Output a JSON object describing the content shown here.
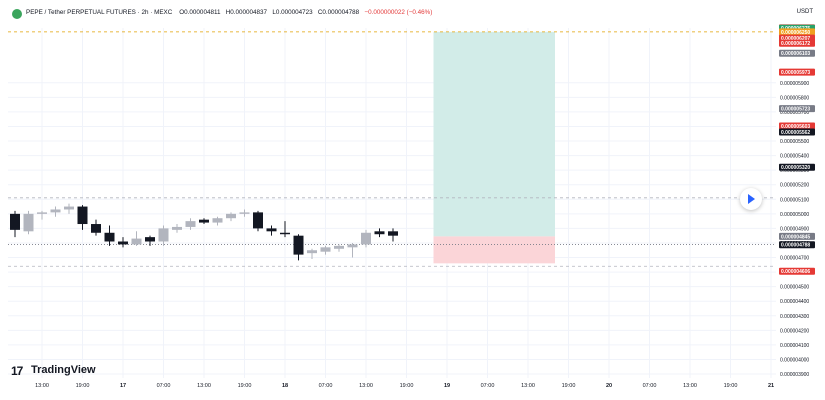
{
  "header": {
    "symbol": "PEPE / Tether PERPETUAL FUTURES · 2h · MEXC",
    "open": "O0.000004811",
    "high": "H0.000004837",
    "low": "L0.000004723",
    "close": "C0.000004788",
    "change": "−0.000000022 (−0.46%)",
    "currency": "USDT"
  },
  "branding": {
    "name": "TradingView",
    "mark": "17"
  },
  "chart_data": {
    "type": "candlestick",
    "ylim": [
      3.9e-06,
      6.4e-06
    ],
    "y_ticks": [
      5.9e-06,
      5.8e-06,
      5.7e-06,
      5.6e-06,
      5.5e-06,
      5.4e-06,
      5.3e-06,
      5.2e-06,
      5.1e-06,
      5e-06,
      4.9e-06,
      4.8e-06,
      4.7e-06,
      4.6e-06,
      4.5e-06,
      4.4e-06,
      4.3e-06,
      4.2e-06,
      4.1e-06,
      4e-06,
      3.9e-06
    ],
    "y_tick_labels": [
      "0.000005900",
      "0.000005800",
      "0.000005700",
      "0.000005600",
      "0.000005500",
      "0.000005400",
      "0.000005300",
      "0.000005200",
      "0.000005100",
      "0.000005000",
      "0.000004900",
      "0.000004800",
      "0.000004700",
      "0.000004600",
      "0.000004500",
      "0.000004400",
      "0.000004300",
      "0.000004200",
      "0.000004100",
      "0.000004000",
      "0.000003900"
    ],
    "x_ticks": [
      {
        "i": 2,
        "label": "13:00"
      },
      {
        "i": 5,
        "label": "19:00"
      },
      {
        "i": 8,
        "label": "17"
      },
      {
        "i": 11,
        "label": "07:00"
      },
      {
        "i": 14,
        "label": "13:00"
      },
      {
        "i": 17,
        "label": "19:00"
      },
      {
        "i": 20,
        "label": "18"
      },
      {
        "i": 23,
        "label": "07:00"
      },
      {
        "i": 26,
        "label": "13:00"
      },
      {
        "i": 29,
        "label": "19:00"
      },
      {
        "i": 32,
        "label": "19"
      },
      {
        "i": 35,
        "label": "07:00"
      },
      {
        "i": 38,
        "label": "13:00"
      },
      {
        "i": 41,
        "label": "19:00"
      },
      {
        "i": 44,
        "label": "20"
      },
      {
        "i": 47,
        "label": "07:00"
      },
      {
        "i": 50,
        "label": "13:00"
      },
      {
        "i": 53,
        "label": "19:00"
      },
      {
        "i": 56,
        "label": "21"
      }
    ],
    "candles": [
      {
        "o": 5e-06,
        "h": 5.02e-06,
        "l": 4.84e-06,
        "c": 4.89e-06
      },
      {
        "o": 4.88e-06,
        "h": 5.02e-06,
        "l": 4.86e-06,
        "c": 5e-06
      },
      {
        "o": 5e-06,
        "h": 5.02e-06,
        "l": 4.96e-06,
        "c": 5.01e-06
      },
      {
        "o": 5.01e-06,
        "h": 5.05e-06,
        "l": 4.98e-06,
        "c": 5.03e-06
      },
      {
        "o": 5.03e-06,
        "h": 5.07e-06,
        "l": 5e-06,
        "c": 5.05e-06
      },
      {
        "o": 5.05e-06,
        "h": 5.06e-06,
        "l": 4.89e-06,
        "c": 4.93e-06
      },
      {
        "o": 4.93e-06,
        "h": 4.96e-06,
        "l": 4.85e-06,
        "c": 4.87e-06
      },
      {
        "o": 4.87e-06,
        "h": 4.92e-06,
        "l": 4.78e-06,
        "c": 4.81e-06
      },
      {
        "o": 4.81e-06,
        "h": 4.84e-06,
        "l": 4.77e-06,
        "c": 4.79e-06
      },
      {
        "o": 4.79e-06,
        "h": 4.88e-06,
        "l": 4.78e-06,
        "c": 4.83e-06
      },
      {
        "o": 4.84e-06,
        "h": 4.85e-06,
        "l": 4.78e-06,
        "c": 4.81e-06
      },
      {
        "o": 4.81e-06,
        "h": 4.92e-06,
        "l": 4.78e-06,
        "c": 4.9e-06
      },
      {
        "o": 4.89e-06,
        "h": 4.93e-06,
        "l": 4.87e-06,
        "c": 4.91e-06
      },
      {
        "o": 4.91e-06,
        "h": 4.97e-06,
        "l": 4.89e-06,
        "c": 4.95e-06
      },
      {
        "o": 4.96e-06,
        "h": 4.97e-06,
        "l": 4.93e-06,
        "c": 4.94e-06
      },
      {
        "o": 4.94e-06,
        "h": 4.98e-06,
        "l": 4.92e-06,
        "c": 4.97e-06
      },
      {
        "o": 4.97e-06,
        "h": 5.01e-06,
        "l": 4.95e-06,
        "c": 5e-06
      },
      {
        "o": 5e-06,
        "h": 5.03e-06,
        "l": 4.98e-06,
        "c": 5.01e-06
      },
      {
        "o": 5.01e-06,
        "h": 5.02e-06,
        "l": 4.88e-06,
        "c": 4.9e-06
      },
      {
        "o": 4.9e-06,
        "h": 4.92e-06,
        "l": 4.85e-06,
        "c": 4.88e-06
      },
      {
        "o": 4.87e-06,
        "h": 4.95e-06,
        "l": 4.84e-06,
        "c": 4.86e-06
      },
      {
        "o": 4.85e-06,
        "h": 4.86e-06,
        "l": 4.68e-06,
        "c": 4.72e-06
      },
      {
        "o": 4.73e-06,
        "h": 4.76e-06,
        "l": 4.69e-06,
        "c": 4.75e-06
      },
      {
        "o": 4.74e-06,
        "h": 4.78e-06,
        "l": 4.72e-06,
        "c": 4.77e-06
      },
      {
        "o": 4.76e-06,
        "h": 4.79e-06,
        "l": 4.74e-06,
        "c": 4.78e-06
      },
      {
        "o": 4.77e-06,
        "h": 4.8e-06,
        "l": 4.7e-06,
        "c": 4.79e-06
      },
      {
        "o": 4.79e-06,
        "h": 4.89e-06,
        "l": 4.77e-06,
        "c": 4.87e-06
      },
      {
        "o": 4.88e-06,
        "h": 4.9e-06,
        "l": 4.84e-06,
        "c": 4.86e-06
      },
      {
        "o": 4.88e-06,
        "h": 4.9e-06,
        "l": 4.81e-06,
        "c": 4.85e-06
      }
    ],
    "position": {
      "entry": 4.845e-06,
      "target": 6.25e-06,
      "stop": 4.66e-06
    },
    "horizontal_lines": [
      {
        "value": 6.25e-06,
        "style": "dashed",
        "color": "#e0a000"
      },
      {
        "value": 5.11e-06,
        "style": "dashed",
        "color": "#b2b5be"
      },
      {
        "value": 4.79e-06,
        "style": "dotted",
        "color": "#787b86"
      },
      {
        "value": 4.64e-06,
        "style": "dashed",
        "color": "#b2b5be"
      }
    ],
    "price_labels": [
      {
        "value": 6.277e-06,
        "text": "0.000006277",
        "color": "#e53935"
      },
      {
        "value": 6.275e-06,
        "text": "0.000006275",
        "color": "#26a269"
      },
      {
        "value": 6.25e-06,
        "text": "0.000006250",
        "color": "#f0a020"
      },
      {
        "value": 6.207e-06,
        "text": "0.000006207",
        "color": "#e53935"
      },
      {
        "value": 6.172e-06,
        "text": "0.000006172",
        "color": "#e53935"
      },
      {
        "value": 6.103e-06,
        "text": "0.000006103",
        "color": "#787b86"
      },
      {
        "value": 5.973e-06,
        "text": "0.000005973",
        "color": "#e53935"
      },
      {
        "value": 5.723e-06,
        "text": "0.000005723",
        "color": "#787b86"
      },
      {
        "value": 5.603e-06,
        "text": "0.000005603",
        "color": "#e53935"
      },
      {
        "value": 5.562e-06,
        "text": "0.000005562",
        "color": "#131722"
      },
      {
        "value": 5.32e-06,
        "text": "0.000005320",
        "color": "#131722"
      },
      {
        "value": 4.845e-06,
        "text": "0.000004845",
        "color": "#787b86"
      },
      {
        "value": 4.788e-06,
        "text": "0.000004788",
        "color": "#131722"
      },
      {
        "value": 4.606e-06,
        "text": "0.000004606",
        "color": "#e53935"
      }
    ],
    "colors": {
      "up": "#b2b5be",
      "down": "#131722",
      "profit": "#d2ece8",
      "loss": "#fbd5d8",
      "grid": "#f0f3fa"
    }
  }
}
